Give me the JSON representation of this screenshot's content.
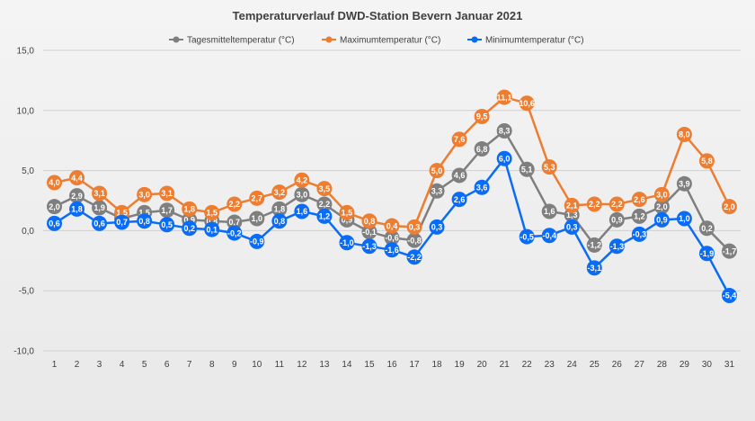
{
  "chart_data": {
    "type": "line",
    "title": "Temperaturverlauf  DWD-Station  Bevern Januar  2021",
    "xlabel": "",
    "ylabel": "",
    "ylim": [
      -10,
      15
    ],
    "y_ticks": [
      "-10,0",
      "-5,0",
      "0,0",
      "5,0",
      "10,0",
      "15,0"
    ],
    "y_tick_values": [
      -10,
      -5,
      0,
      5,
      10,
      15
    ],
    "grid": true,
    "legend_position": "top",
    "categories": [
      "1",
      "2",
      "3",
      "4",
      "5",
      "6",
      "7",
      "8",
      "9",
      "10",
      "11",
      "12",
      "13",
      "14",
      "15",
      "16",
      "17",
      "18",
      "19",
      "20",
      "21",
      "22",
      "23",
      "24",
      "25",
      "26",
      "27",
      "28",
      "29",
      "30",
      "31"
    ],
    "series": [
      {
        "name": "Tagesmitteltemperatur (°C)",
        "color": "#7f7f7f",
        "values": [
          2.0,
          2.9,
          1.9,
          1.0,
          1.5,
          1.7,
          0.9,
          0.8,
          0.7,
          1.0,
          1.8,
          3.0,
          2.2,
          0.9,
          -0.1,
          -0.6,
          -0.8,
          3.3,
          4.6,
          6.8,
          8.3,
          5.1,
          1.6,
          1.3,
          -1.2,
          0.9,
          1.2,
          2.0,
          3.9,
          0.2,
          -1.7
        ],
        "labels": [
          "2,0",
          "2,9",
          "1,9",
          "1,0",
          "1,5",
          "1,7",
          "0,9",
          "0,8",
          "0,7",
          "1,0",
          "1,8",
          "3,0",
          "2,2",
          "0,9",
          "-0,1",
          "-0,6",
          "-0,8",
          "3,3",
          "4,6",
          "6,8",
          "8,3",
          "5,1",
          "1,6",
          "1,3",
          "-1,2",
          "0,9",
          "1,2",
          "2,0",
          "3,9",
          "0,2",
          "-1,7"
        ]
      },
      {
        "name": "Maximumtemperatur (°C)",
        "color": "#ed7d31",
        "values": [
          4.0,
          4.4,
          3.1,
          1.5,
          3.0,
          3.1,
          1.8,
          1.5,
          2.2,
          2.7,
          3.2,
          4.2,
          3.5,
          1.5,
          0.8,
          0.4,
          0.3,
          5.0,
          7.6,
          9.5,
          11.1,
          10.6,
          5.3,
          2.1,
          2.2,
          2.2,
          2.6,
          3.0,
          8.0,
          5.8,
          2.0
        ],
        "labels": [
          "4,0",
          "4,4",
          "3,1",
          "1,5",
          "3,0",
          "3,1",
          "1,8",
          "1,5",
          "2,2",
          "2,7",
          "3,2",
          "4,2",
          "3,5",
          "1,5",
          "0,8",
          "0,4",
          "0,3",
          "5,0",
          "7,6",
          "9,5",
          "11,1",
          "10,6",
          "5,3",
          "2,1",
          "2,2",
          "2,2",
          "2,6",
          "3,0",
          "8,0",
          "5,8",
          "2,0"
        ]
      },
      {
        "name": "Minimumtemperatur (°C)",
        "color": "#0a6cf5",
        "values": [
          0.6,
          1.8,
          0.6,
          0.7,
          0.8,
          0.5,
          0.2,
          0.1,
          -0.2,
          -0.9,
          0.8,
          1.6,
          1.2,
          -1.0,
          -1.3,
          -1.6,
          -2.2,
          0.3,
          2.6,
          3.6,
          6.0,
          -0.5,
          -0.4,
          0.3,
          -3.1,
          -1.3,
          -0.3,
          0.9,
          1.0,
          -1.9,
          -5.4
        ],
        "labels": [
          "0,6",
          "1,8",
          "0,6",
          "0,7",
          "0,8",
          "0,5",
          "0,2",
          "0,1",
          "-0,2",
          "-0,9",
          "0,8",
          "1,6",
          "1,2",
          "-1,0",
          "-1,3",
          "-1,6",
          "-2,2",
          "0,3",
          "2,6",
          "3,6",
          "6,0",
          "-0,5",
          "-0,4",
          "0,3",
          "-3,1",
          "-1,3",
          "-0,3",
          "0,9",
          "1,0",
          "-1,9",
          "-5,4"
        ]
      }
    ]
  }
}
